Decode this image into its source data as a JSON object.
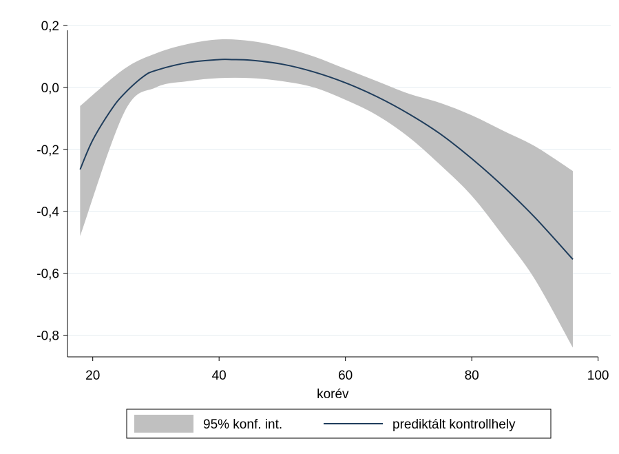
{
  "chart_data": {
    "type": "line",
    "title": "",
    "xlabel": "korév",
    "ylabel": "",
    "xlim": [
      16,
      102
    ],
    "ylim": [
      -0.87,
      0.22
    ],
    "x_ticks": [
      20,
      40,
      60,
      80,
      100
    ],
    "x_tick_labels": [
      "20",
      "40",
      "60",
      "80",
      "100"
    ],
    "y_ticks": [
      0.2,
      0.0,
      -0.2,
      -0.4,
      -0.6,
      -0.8
    ],
    "y_tick_labels": [
      "0,2",
      "0,0",
      "-0,2",
      "-0,4",
      "-0,6",
      "-0,8"
    ],
    "grid": true,
    "legend_position": "bottom",
    "colors": {
      "band": "#c0c0c0",
      "line": "#1f3d5c",
      "grid": "#e4ecf0"
    },
    "series": [
      {
        "name": "95% konf. int.",
        "kind": "band",
        "x": [
          18,
          25,
          30,
          35,
          40,
          45,
          50,
          55,
          60,
          65,
          70,
          75,
          80,
          85,
          90,
          96
        ],
        "lower": [
          -0.48,
          -0.08,
          0.0,
          0.02,
          0.03,
          0.03,
          0.02,
          0.0,
          -0.04,
          -0.09,
          -0.16,
          -0.25,
          -0.35,
          -0.48,
          -0.62,
          -0.84
        ],
        "upper": [
          -0.06,
          0.06,
          0.11,
          0.14,
          0.155,
          0.15,
          0.13,
          0.1,
          0.06,
          0.02,
          -0.02,
          -0.05,
          -0.09,
          -0.14,
          -0.19,
          -0.27
        ]
      },
      {
        "name": "prediktált kontrollhely",
        "kind": "line",
        "x": [
          18,
          20,
          23,
          25,
          28,
          30,
          35,
          40,
          42,
          45,
          50,
          55,
          60,
          65,
          70,
          75,
          80,
          85,
          90,
          96
        ],
        "y": [
          -0.265,
          -0.17,
          -0.07,
          -0.02,
          0.035,
          0.055,
          0.08,
          0.09,
          0.09,
          0.088,
          0.075,
          0.05,
          0.015,
          -0.03,
          -0.085,
          -0.15,
          -0.23,
          -0.32,
          -0.42,
          -0.555
        ]
      }
    ]
  }
}
